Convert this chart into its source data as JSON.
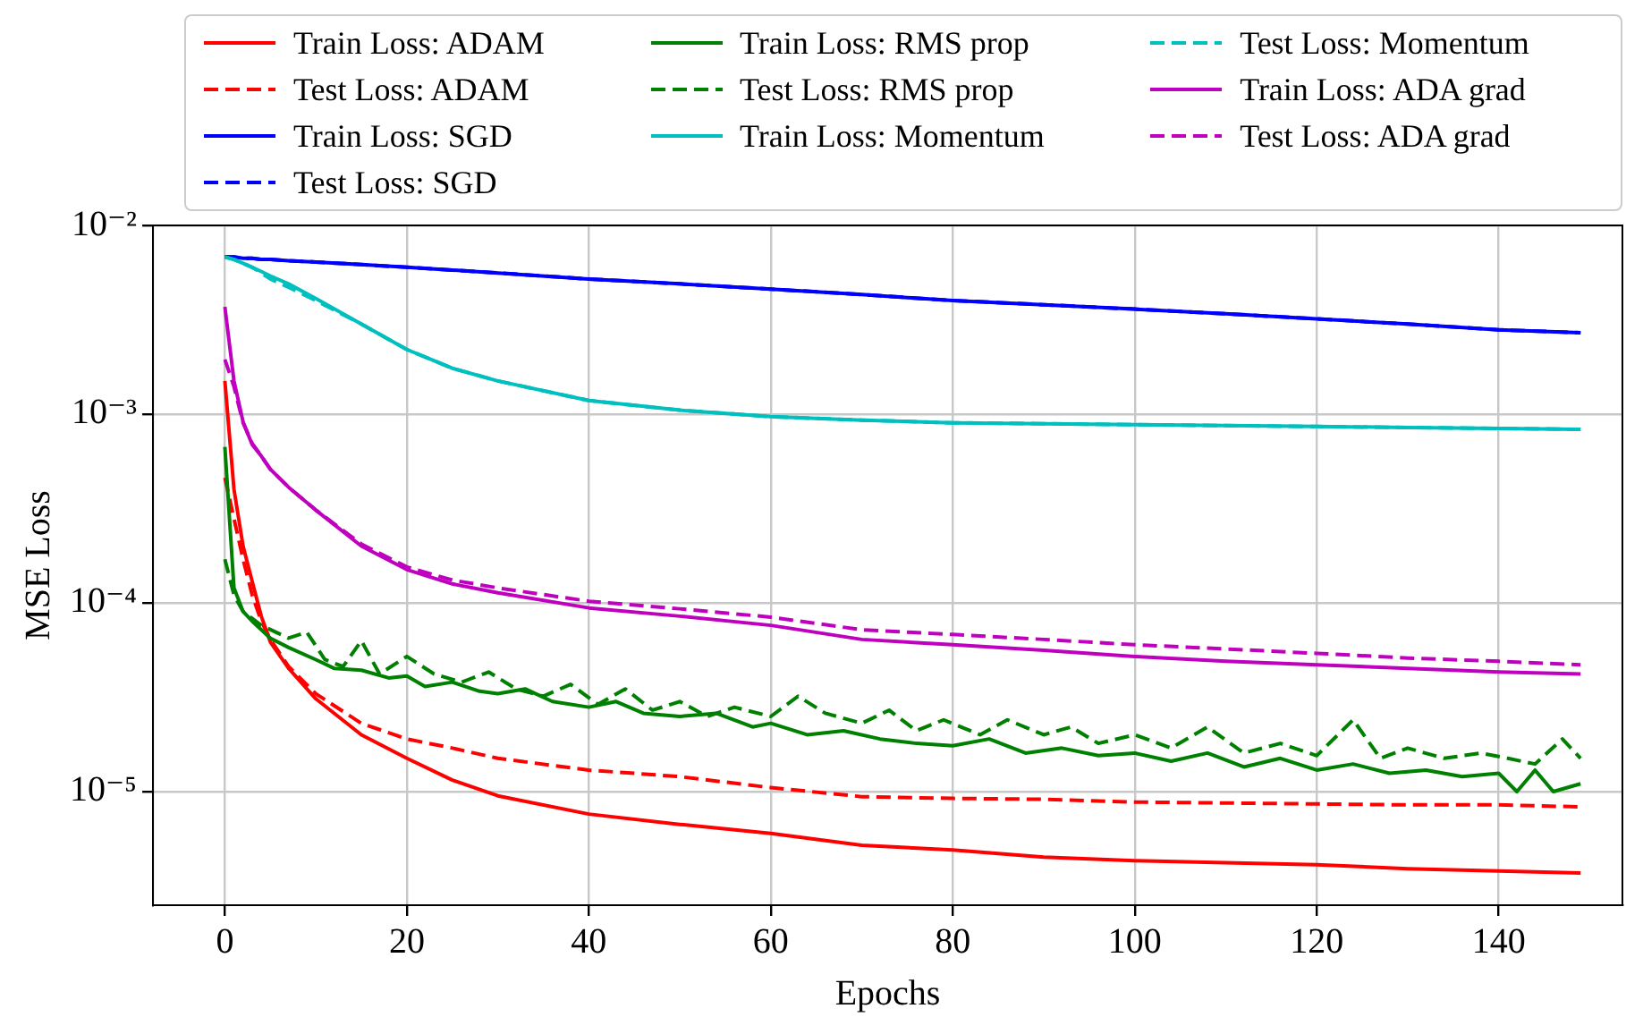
{
  "chart_data": {
    "type": "line",
    "xlabel": "Epochs",
    "ylabel": "MSE Loss",
    "log": "y",
    "grid": true,
    "legend": "top",
    "marker": "none",
    "x": [
      0,
      1,
      2,
      3,
      4,
      5,
      7,
      10,
      15,
      20,
      25,
      30,
      40,
      50,
      60,
      70,
      80,
      90,
      100,
      110,
      120,
      130,
      140,
      149
    ],
    "xlim": [
      -7.9,
      153.6
    ],
    "xticks": [
      0,
      20,
      40,
      60,
      80,
      100,
      120,
      140
    ],
    "ylim": [
      2.5e-06,
      0.01
    ],
    "yticks": [
      {
        "value": 1e-05,
        "label": "10⁻⁵"
      },
      {
        "value": 0.0001,
        "label": "10⁻⁴"
      },
      {
        "value": 0.001,
        "label": "10⁻³"
      },
      {
        "value": 0.01,
        "label": "10⁻²"
      }
    ],
    "series": [
      {
        "name": "Train Loss: ADAM",
        "color": "#ff0000",
        "line_style": "solid",
        "values": [
          0.0015,
          0.0004,
          0.0002,
          0.00013,
          8.5e-05,
          6.2e-05,
          4.5e-05,
          3.1e-05,
          2e-05,
          1.5e-05,
          1.15e-05,
          9.5e-06,
          7.6e-06,
          6.7e-06,
          6e-06,
          5.2e-06,
          4.9e-06,
          4.5e-06,
          4.3e-06,
          4.2e-06,
          4.1e-06,
          3.9e-06,
          3.8e-06,
          3.7e-06
        ]
      },
      {
        "name": "Test Loss: ADAM",
        "color": "#ff0000",
        "line_style": "dashed",
        "values": [
          0.00046,
          0.00028,
          0.00017,
          0.00011,
          8e-05,
          6.4e-05,
          4.6e-05,
          3.3e-05,
          2.3e-05,
          1.9e-05,
          1.7e-05,
          1.5e-05,
          1.3e-05,
          1.2e-05,
          1.05e-05,
          9.4e-06,
          9.2e-06,
          9.1e-06,
          8.8e-06,
          8.7e-06,
          8.6e-06,
          8.5e-06,
          8.5e-06,
          8.3e-06
        ]
      },
      {
        "name": "Train Loss: SGD",
        "color": "#0000ff",
        "line_style": "solid",
        "values": [
          0.0068,
          0.0068,
          0.0067,
          0.0067,
          0.0066,
          0.0066,
          0.0065,
          0.0064,
          0.0062,
          0.006,
          0.0058,
          0.0056,
          0.0052,
          0.0049,
          0.0046,
          0.0043,
          0.004,
          0.0038,
          0.0036,
          0.0034,
          0.0032,
          0.003,
          0.0028,
          0.0027
        ]
      },
      {
        "name": "Test Loss: SGD",
        "color": "#0000ff",
        "line_style": "dashed",
        "values": [
          0.0068,
          0.0068,
          0.0067,
          0.0067,
          0.0066,
          0.0066,
          0.0065,
          0.0064,
          0.0062,
          0.006,
          0.0058,
          0.0056,
          0.0052,
          0.0049,
          0.0046,
          0.0043,
          0.004,
          0.0038,
          0.0036,
          0.0034,
          0.0032,
          0.003,
          0.0028,
          0.0027
        ]
      },
      {
        "name": "Train Loss: RMS prop",
        "color": "#008000",
        "line_style": "solid",
        "x": [
          0,
          1,
          2,
          3,
          5,
          7,
          10,
          12,
          15,
          18,
          20,
          22,
          25,
          28,
          30,
          33,
          36,
          40,
          43,
          46,
          50,
          54,
          58,
          60,
          64,
          68,
          72,
          76,
          80,
          84,
          88,
          92,
          96,
          100,
          104,
          108,
          112,
          116,
          120,
          124,
          128,
          132,
          136,
          140,
          142,
          144,
          146,
          149
        ],
        "values": [
          0.00067,
          0.00012,
          9e-05,
          8e-05,
          6.5e-05,
          5.8e-05,
          5e-05,
          4.5e-05,
          4.4e-05,
          4e-05,
          4.1e-05,
          3.6e-05,
          3.8e-05,
          3.4e-05,
          3.3e-05,
          3.5e-05,
          3e-05,
          2.8e-05,
          3e-05,
          2.6e-05,
          2.5e-05,
          2.6e-05,
          2.2e-05,
          2.3e-05,
          2e-05,
          2.1e-05,
          1.9e-05,
          1.8e-05,
          1.75e-05,
          1.9e-05,
          1.6e-05,
          1.7e-05,
          1.55e-05,
          1.6e-05,
          1.45e-05,
          1.6e-05,
          1.35e-05,
          1.5e-05,
          1.3e-05,
          1.4e-05,
          1.25e-05,
          1.3e-05,
          1.2e-05,
          1.25e-05,
          1e-05,
          1.3e-05,
          1e-05,
          1.1e-05
        ]
      },
      {
        "name": "Test Loss: RMS prop",
        "color": "#008000",
        "line_style": "dashed",
        "x": [
          0,
          1,
          2,
          4,
          7,
          9,
          11,
          13,
          15,
          17,
          20,
          23,
          26,
          29,
          32,
          35,
          38,
          41,
          44,
          47,
          50,
          53,
          56,
          60,
          63,
          66,
          70,
          73,
          76,
          79,
          83,
          86,
          90,
          93,
          96,
          100,
          104,
          108,
          112,
          116,
          120,
          124,
          127,
          130,
          134,
          138,
          141,
          144,
          147,
          149
        ],
        "values": [
          0.00017,
          0.00011,
          9e-05,
          7.6e-05,
          6.5e-05,
          7e-05,
          5e-05,
          4.6e-05,
          6.3e-05,
          4.2e-05,
          5.2e-05,
          4.2e-05,
          3.8e-05,
          4.3e-05,
          3.5e-05,
          3.2e-05,
          3.7e-05,
          2.9e-05,
          3.5e-05,
          2.7e-05,
          3e-05,
          2.5e-05,
          2.8e-05,
          2.5e-05,
          3.2e-05,
          2.6e-05,
          2.3e-05,
          2.7e-05,
          2.1e-05,
          2.4e-05,
          2e-05,
          2.4e-05,
          2e-05,
          2.2e-05,
          1.8e-05,
          2e-05,
          1.7e-05,
          2.2e-05,
          1.6e-05,
          1.8e-05,
          1.55e-05,
          2.4e-05,
          1.5e-05,
          1.7e-05,
          1.5e-05,
          1.6e-05,
          1.5e-05,
          1.4e-05,
          1.9e-05,
          1.5e-05
        ]
      },
      {
        "name": "Train Loss: Momentum",
        "color": "#00bfbf",
        "line_style": "solid",
        "values": [
          0.0068,
          0.0066,
          0.0063,
          0.006,
          0.0057,
          0.0054,
          0.0049,
          0.0041,
          0.003,
          0.0022,
          0.00175,
          0.0015,
          0.00118,
          0.00105,
          0.00097,
          0.00093,
          0.0009,
          0.00089,
          0.00088,
          0.00087,
          0.00086,
          0.00085,
          0.00084,
          0.00083
        ]
      },
      {
        "name": "Test Loss: Momentum",
        "color": "#00bfbf",
        "line_style": "dashed",
        "values": [
          0.0068,
          0.0066,
          0.0063,
          0.006,
          0.0056,
          0.0052,
          0.0047,
          0.004,
          0.003,
          0.0022,
          0.00175,
          0.0015,
          0.00118,
          0.00105,
          0.00097,
          0.00093,
          0.0009,
          0.00089,
          0.00088,
          0.00087,
          0.00086,
          0.00085,
          0.00084,
          0.00083
        ]
      },
      {
        "name": "Train Loss: ADA grad",
        "color": "#bf00bf",
        "line_style": "solid",
        "values": [
          0.0037,
          0.0015,
          0.00091,
          0.00069,
          0.0006,
          0.00051,
          0.00041,
          0.00031,
          0.0002,
          0.00015,
          0.000126,
          0.000113,
          9.4e-05,
          8.5e-05,
          7.6e-05,
          6.4e-05,
          6e-05,
          5.6e-05,
          5.2e-05,
          4.9e-05,
          4.7e-05,
          4.5e-05,
          4.3e-05,
          4.2e-05
        ]
      },
      {
        "name": "Test Loss: ADA grad",
        "color": "#bf00bf",
        "line_style": "dashed",
        "values": [
          0.00195,
          0.0014,
          0.0009,
          0.0007,
          0.0006,
          0.00051,
          0.00041,
          0.00031,
          0.000205,
          0.000155,
          0.000132,
          0.00012,
          0.000102,
          9.3e-05,
          8.4e-05,
          7.2e-05,
          6.8e-05,
          6.4e-05,
          6e-05,
          5.7e-05,
          5.4e-05,
          5.1e-05,
          4.9e-05,
          4.7e-05
        ]
      }
    ]
  }
}
